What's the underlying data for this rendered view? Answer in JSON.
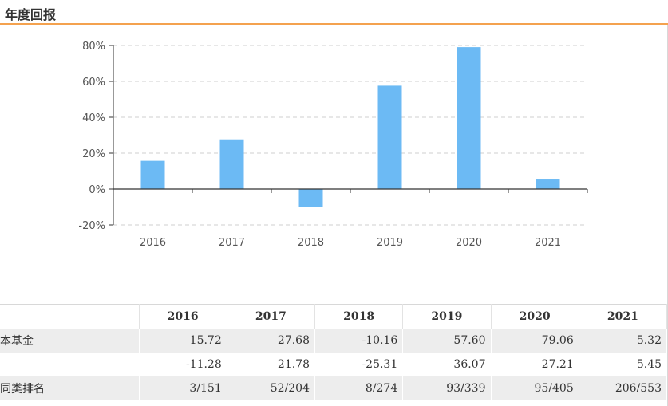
{
  "header": {
    "title": "年度回报"
  },
  "chart_data": {
    "type": "bar",
    "categories": [
      "2016",
      "2017",
      "2018",
      "2019",
      "2020",
      "2021"
    ],
    "values": [
      15.72,
      27.68,
      -10.16,
      57.6,
      79.06,
      5.32
    ],
    "ylim": [
      -20,
      80
    ],
    "yticks": [
      -20,
      0,
      20,
      40,
      60,
      80
    ],
    "ytick_labels": [
      "-20%",
      "0%",
      "20%",
      "40%",
      "60%",
      "80%"
    ],
    "grid": true,
    "bar_color": "#6cbaf4"
  },
  "table": {
    "columns": [
      "",
      "2016",
      "2017",
      "2018",
      "2019",
      "2020",
      "2021"
    ],
    "rows": [
      {
        "label": "本基金",
        "cells": [
          "15.72",
          "27.68",
          "-10.16",
          "57.60",
          "79.06",
          "5.32"
        ]
      },
      {
        "label": "",
        "cells": [
          "-11.28",
          "21.78",
          "-25.31",
          "36.07",
          "27.21",
          "5.45"
        ]
      },
      {
        "label": "同类排名",
        "cells": [
          "3/151",
          "52/204",
          "8/274",
          "93/339",
          "95/405",
          "206/553"
        ]
      }
    ]
  }
}
